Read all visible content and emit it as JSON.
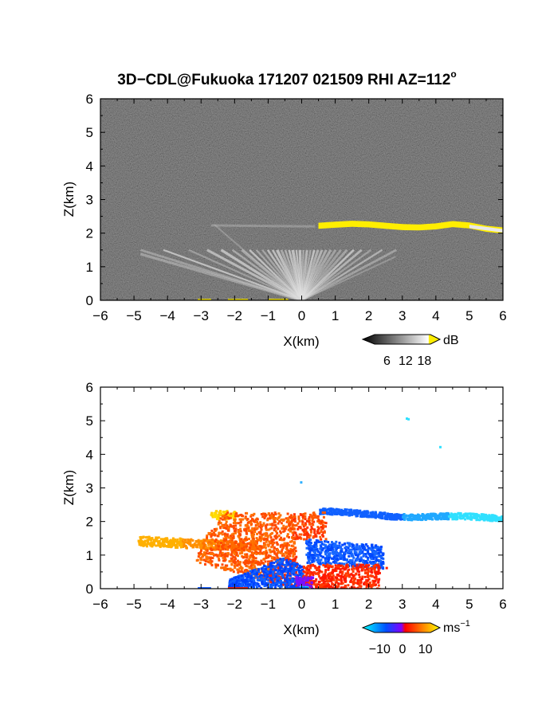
{
  "title": {
    "main": "3D−CDL@Fukuoka 171207 021509 RHI AZ=112",
    "sup": "o"
  },
  "colors": {
    "yellow_layer": "#ffee00",
    "reflectivity_bg": "#2a2a2a",
    "velocity_blue": "#0050ff",
    "velocity_cyan": "#00e0ff",
    "velocity_red": "#ff2000",
    "velocity_orange": "#ff9000"
  },
  "chart_data": [
    {
      "type": "heatmap",
      "name": "reflectivity",
      "xlabel": "X(km)",
      "ylabel": "Z(km)",
      "xlim": [
        -6,
        6
      ],
      "ylim": [
        0,
        6
      ],
      "xticks": [
        -6,
        -5,
        -4,
        -3,
        -2,
        -1,
        0,
        1,
        2,
        3,
        4,
        5,
        6
      ],
      "yticks": [
        0,
        1,
        2,
        3,
        4,
        5,
        6
      ],
      "colorbar": {
        "unit": "dB",
        "ticks": [
          6,
          12,
          18
        ],
        "range": [
          0,
          22
        ]
      },
      "features": {
        "cloud_layer": {
          "x": [
            0.5,
            1.0,
            1.5,
            2.0,
            2.5,
            3.0,
            3.5,
            4.0,
            4.5,
            5.0,
            5.5,
            6.0
          ],
          "z": [
            2.22,
            2.25,
            2.28,
            2.26,
            2.22,
            2.18,
            2.17,
            2.2,
            2.27,
            2.23,
            2.13,
            2.08
          ]
        },
        "beam_fan": {
          "elevations_deg": [
            164,
            160,
            156,
            152,
            148,
            144,
            140,
            136,
            132,
            128,
            124,
            120,
            116,
            112,
            108,
            104,
            100,
            96,
            92,
            88,
            84,
            80,
            76,
            72,
            68,
            64,
            60,
            56,
            52,
            48,
            44,
            40,
            36,
            32,
            28
          ],
          "max_height_km": 1.5
        }
      }
    },
    {
      "type": "heatmap",
      "name": "doppler_velocity",
      "xlabel": "X(km)",
      "ylabel": "Z(km)",
      "xlim": [
        -6,
        6
      ],
      "ylim": [
        0,
        6
      ],
      "xticks": [
        -6,
        -5,
        -4,
        -3,
        -2,
        -1,
        0,
        1,
        2,
        3,
        4,
        5,
        6
      ],
      "yticks": [
        0,
        1,
        2,
        3,
        4,
        5,
        6
      ],
      "colorbar": {
        "unit": "ms",
        "unit_sup": "−1",
        "ticks": [
          -10,
          0,
          10
        ],
        "tick_labels": [
          "−10",
          "0",
          "10"
        ],
        "range": [
          -15,
          15
        ]
      }
    }
  ]
}
